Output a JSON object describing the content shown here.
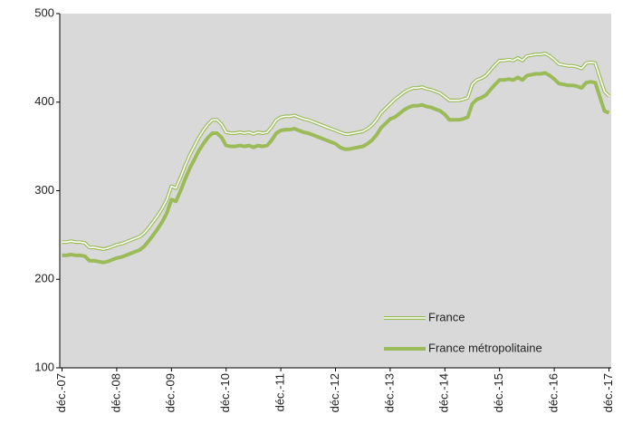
{
  "chart_data": {
    "type": "line",
    "categories": [
      "déc.-07",
      null,
      null,
      null,
      null,
      null,
      null,
      null,
      null,
      null,
      null,
      null,
      "déc.-08",
      null,
      null,
      null,
      null,
      null,
      null,
      null,
      null,
      null,
      null,
      null,
      "déc.-09",
      null,
      null,
      null,
      null,
      null,
      null,
      null,
      null,
      null,
      null,
      null,
      "déc.-10",
      null,
      null,
      null,
      null,
      null,
      null,
      null,
      null,
      null,
      null,
      null,
      "déc.-11",
      null,
      null,
      null,
      null,
      null,
      null,
      null,
      null,
      null,
      null,
      null,
      "déc.-12",
      null,
      null,
      null,
      null,
      null,
      null,
      null,
      null,
      null,
      null,
      null,
      "déc.-13",
      null,
      null,
      null,
      null,
      null,
      null,
      null,
      null,
      null,
      null,
      null,
      "déc.-14",
      null,
      null,
      null,
      null,
      null,
      null,
      null,
      null,
      null,
      null,
      null,
      "déc.-15",
      null,
      null,
      null,
      null,
      null,
      null,
      null,
      null,
      null,
      null,
      null,
      "déc.-16",
      null,
      null,
      null,
      null,
      null,
      null,
      null,
      null,
      null,
      null,
      null,
      "déc.-17"
    ],
    "series": [
      {
        "name": "France",
        "color": "#9bbb59",
        "line_style": "double",
        "values": [
          242,
          242,
          243,
          242,
          242,
          241,
          236,
          236,
          235,
          234,
          235,
          237,
          239,
          240,
          242,
          244,
          246,
          248,
          252,
          258,
          265,
          272,
          280,
          290,
          305,
          303,
          315,
          328,
          340,
          350,
          360,
          368,
          375,
          380,
          380,
          375,
          366,
          365,
          365,
          366,
          365,
          366,
          364,
          366,
          365,
          366,
          372,
          380,
          383,
          384,
          384,
          385,
          383,
          381,
          380,
          378,
          376,
          374,
          372,
          370,
          368,
          366,
          364,
          364,
          365,
          366,
          367,
          370,
          374,
          380,
          388,
          393,
          398,
          403,
          407,
          411,
          414,
          416,
          416,
          417,
          415,
          414,
          412,
          410,
          406,
          402,
          402,
          402,
          403,
          405,
          420,
          425,
          427,
          430,
          436,
          442,
          447,
          447,
          448,
          447,
          450,
          447,
          452,
          453,
          454,
          454,
          455,
          452,
          448,
          443,
          442,
          441,
          441,
          440,
          438,
          444,
          445,
          444,
          428,
          412,
          407
        ]
      },
      {
        "name": "France métropolitaine",
        "color": "#9bbb59",
        "line_style": "solid",
        "values": [
          227,
          227,
          228,
          227,
          227,
          226,
          221,
          221,
          220,
          219,
          220,
          222,
          224,
          225,
          227,
          229,
          231,
          233,
          237,
          243,
          250,
          257,
          265,
          275,
          290,
          288,
          300,
          313,
          325,
          335,
          345,
          353,
          360,
          365,
          365,
          360,
          351,
          350,
          350,
          351,
          350,
          351,
          349,
          351,
          350,
          351,
          357,
          365,
          368,
          369,
          369,
          370,
          368,
          366,
          365,
          363,
          361,
          359,
          357,
          355,
          353,
          349,
          347,
          347,
          348,
          349,
          350,
          353,
          357,
          363,
          371,
          376,
          381,
          383,
          387,
          391,
          394,
          396,
          396,
          397,
          395,
          394,
          392,
          390,
          386,
          380,
          380,
          380,
          381,
          383,
          398,
          403,
          405,
          408,
          414,
          420,
          425,
          425,
          426,
          425,
          428,
          425,
          430,
          431,
          432,
          432,
          433,
          430,
          426,
          421,
          420,
          419,
          419,
          418,
          416,
          422,
          423,
          422,
          406,
          390,
          388
        ]
      }
    ],
    "ylim": [
      100,
      500
    ],
    "yticks": [
      100,
      200,
      300,
      400,
      500
    ],
    "plot_background": "#d9d9d9",
    "legend": "lower right"
  }
}
